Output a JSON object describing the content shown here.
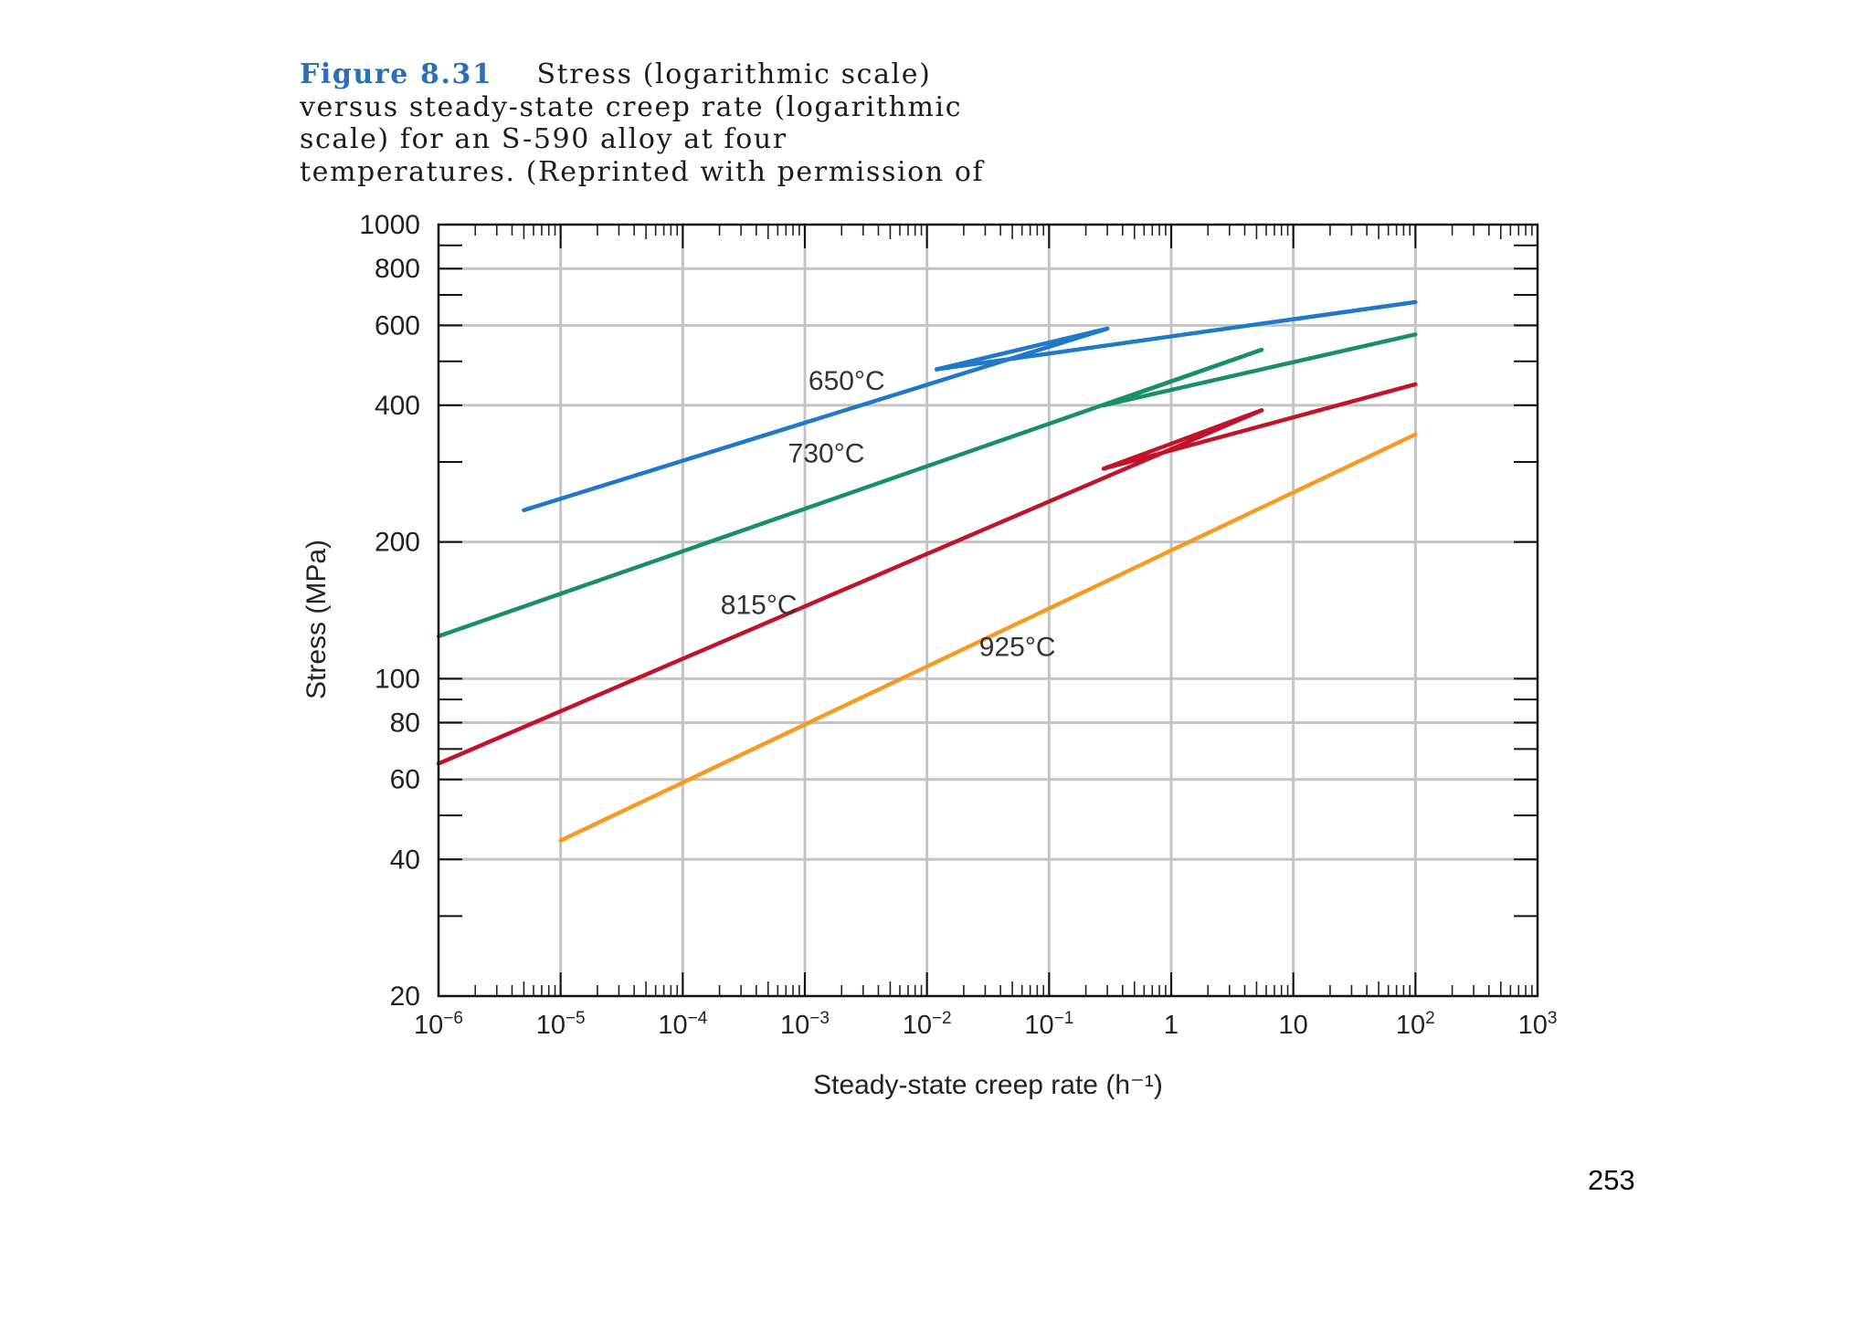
{
  "caption": {
    "figure_number": "Figure 8.31",
    "lines": [
      "Stress (logarithmic scale)",
      "versus steady-state creep rate (logarithmic",
      "scale) for an S-590 alloy at four",
      "temperatures. (Reprinted with permission of"
    ]
  },
  "page_number": "253",
  "chart_data": {
    "type": "line",
    "xscale": "log",
    "yscale": "log",
    "xlabel": "Steady-state creep rate (h⁻¹)",
    "ylabel": "Stress (MPa)",
    "xlim": [
      1e-06,
      1000
    ],
    "ylim": [
      20,
      1000
    ],
    "grid": true,
    "x_ticks": [
      {
        "value": 1e-06,
        "base": "10",
        "exp": "−6"
      },
      {
        "value": 1e-05,
        "base": "10",
        "exp": "−5"
      },
      {
        "value": 0.0001,
        "base": "10",
        "exp": "−4"
      },
      {
        "value": 0.001,
        "base": "10",
        "exp": "−3"
      },
      {
        "value": 0.01,
        "base": "10",
        "exp": "−2"
      },
      {
        "value": 0.1,
        "base": "10",
        "exp": "−1"
      },
      {
        "value": 1,
        "base": "1",
        "exp": ""
      },
      {
        "value": 10,
        "base": "10",
        "exp": ""
      },
      {
        "value": 100,
        "base": "10",
        "exp": "2"
      },
      {
        "value": 1000,
        "base": "10",
        "exp": "3"
      }
    ],
    "y_ticks": [
      {
        "value": 20,
        "label": "20"
      },
      {
        "value": 40,
        "label": "40"
      },
      {
        "value": 60,
        "label": "60"
      },
      {
        "value": 80,
        "label": "80"
      },
      {
        "value": 100,
        "label": "100"
      },
      {
        "value": 200,
        "label": "200"
      },
      {
        "value": 400,
        "label": "400"
      },
      {
        "value": 600,
        "label": "600"
      },
      {
        "value": 800,
        "label": "800"
      },
      {
        "value": 1000,
        "label": "1000"
      }
    ],
    "y_minor_ticks": [
      30,
      50,
      70,
      90,
      300,
      500,
      700,
      900
    ],
    "series": [
      {
        "name": "650°C",
        "color": "#1f78c8",
        "x": [
          5e-06,
          0.3
        ],
        "y": [
          235,
          590
        ],
        "arrow": {
          "x": [
            0.012,
            0.3
          ],
          "y": [
            480,
            590
          ]
        },
        "extension": {
          "x": [
            0.012,
            100
          ],
          "y": [
            480,
            675
          ]
        },
        "label": {
          "text": "650°C",
          "x": 0.0022,
          "y": 455
        }
      },
      {
        "name": "730°C",
        "color": "#17906a",
        "x": [
          1e-06,
          5.5
        ],
        "y": [
          124,
          530
        ],
        "arrow": {
          "x": [
            0.28,
            5.5
          ],
          "y": [
            400,
            530
          ]
        },
        "extension": {
          "x": [
            0.28,
            100
          ],
          "y": [
            400,
            573
          ]
        },
        "label": {
          "text": "730°C",
          "x": 0.0015,
          "y": 315
        }
      },
      {
        "name": "815°C",
        "color": "#c0142d",
        "x": [
          1e-06,
          5.5
        ],
        "y": [
          65,
          390
        ],
        "arrow": {
          "x": [
            0.28,
            5.5
          ],
          "y": [
            290,
            390
          ]
        },
        "extension": {
          "x": [
            0.28,
            100
          ],
          "y": [
            290,
            445
          ]
        },
        "label": {
          "text": "815°C",
          "x": 0.00042,
          "y": 146
        }
      },
      {
        "name": "925°C",
        "color": "#f59a22",
        "x": [
          1e-05,
          100
        ],
        "y": [
          44,
          345
        ],
        "label": {
          "text": "925°C",
          "x": 0.055,
          "y": 118
        }
      }
    ]
  }
}
